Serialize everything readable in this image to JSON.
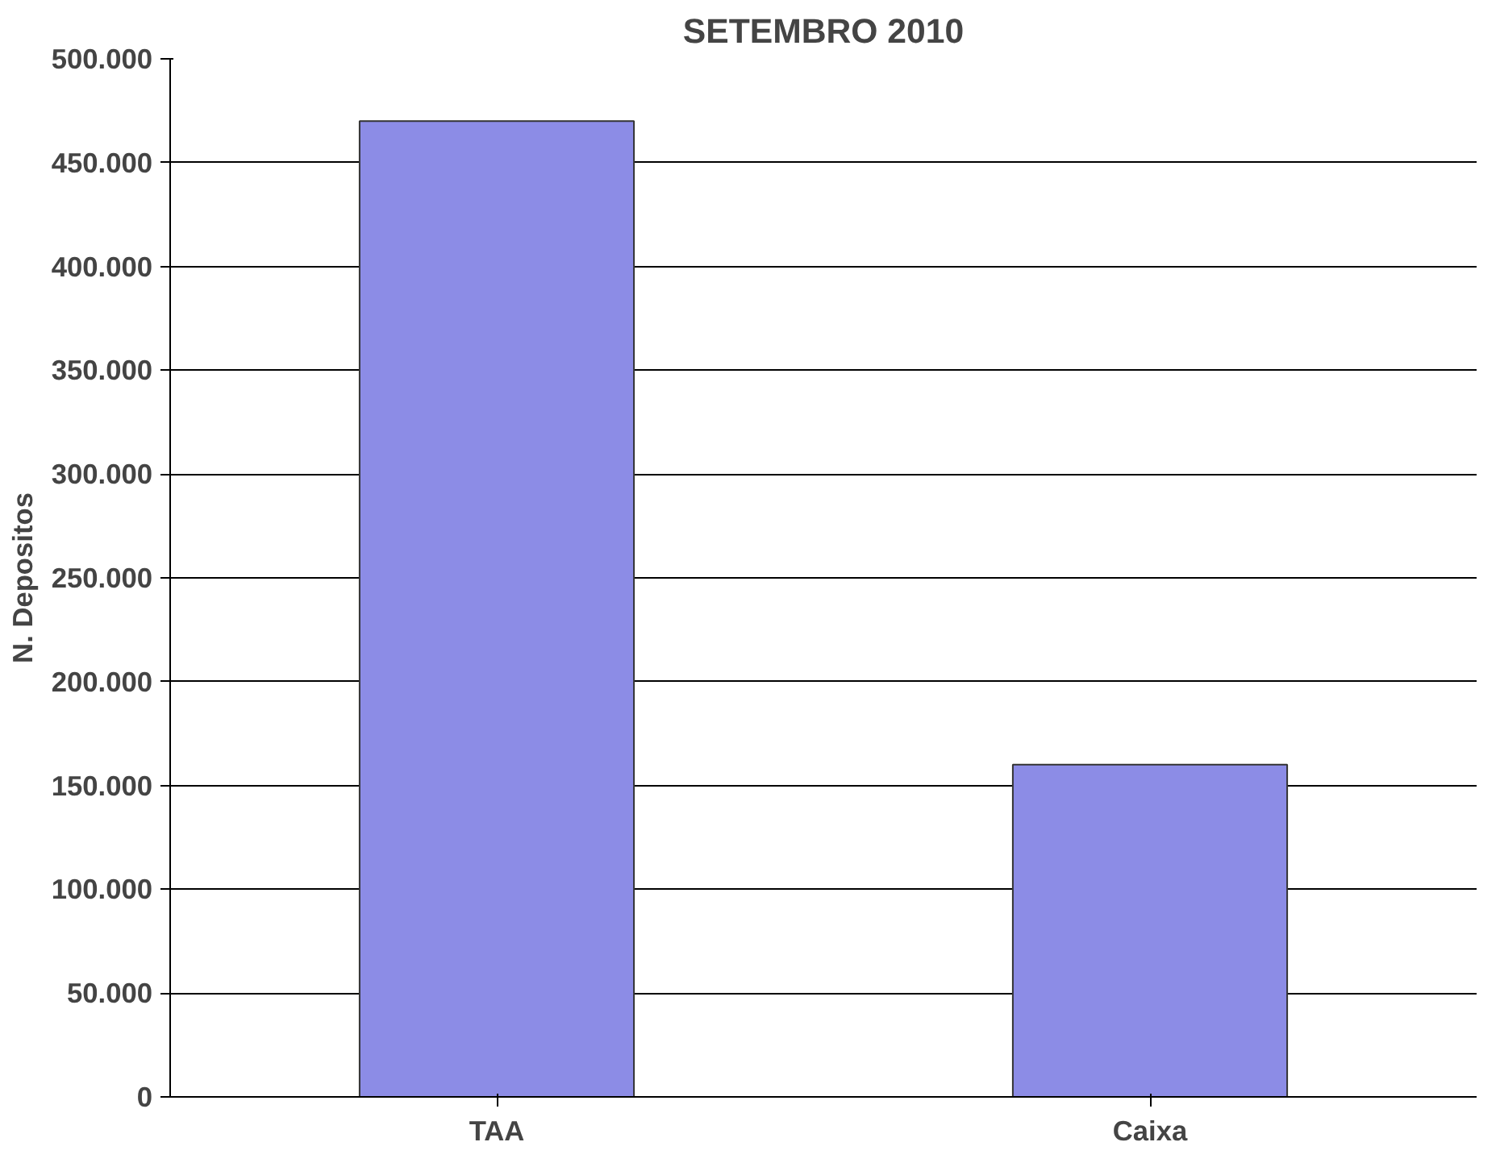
{
  "chart_data": {
    "type": "bar",
    "title": "SETEMBRO 2010",
    "ylabel": "N. Depositos",
    "categories": [
      "TAA",
      "Caixa"
    ],
    "values": [
      470000,
      160000
    ],
    "color": "#8c8ce6",
    "ylim": [
      0,
      500000
    ],
    "yticks": [
      {
        "value": 0,
        "label": "0"
      },
      {
        "value": 50000,
        "label": "50.000"
      },
      {
        "value": 100000,
        "label": "100.000"
      },
      {
        "value": 150000,
        "label": "150.000"
      },
      {
        "value": 200000,
        "label": "200.000"
      },
      {
        "value": 250000,
        "label": "250.000"
      },
      {
        "value": 300000,
        "label": "300.000"
      },
      {
        "value": 350000,
        "label": "350.000"
      },
      {
        "value": 400000,
        "label": "400.000"
      },
      {
        "value": 450000,
        "label": "450.000"
      },
      {
        "value": 500000,
        "label": "500.000"
      }
    ],
    "grid": "y"
  }
}
